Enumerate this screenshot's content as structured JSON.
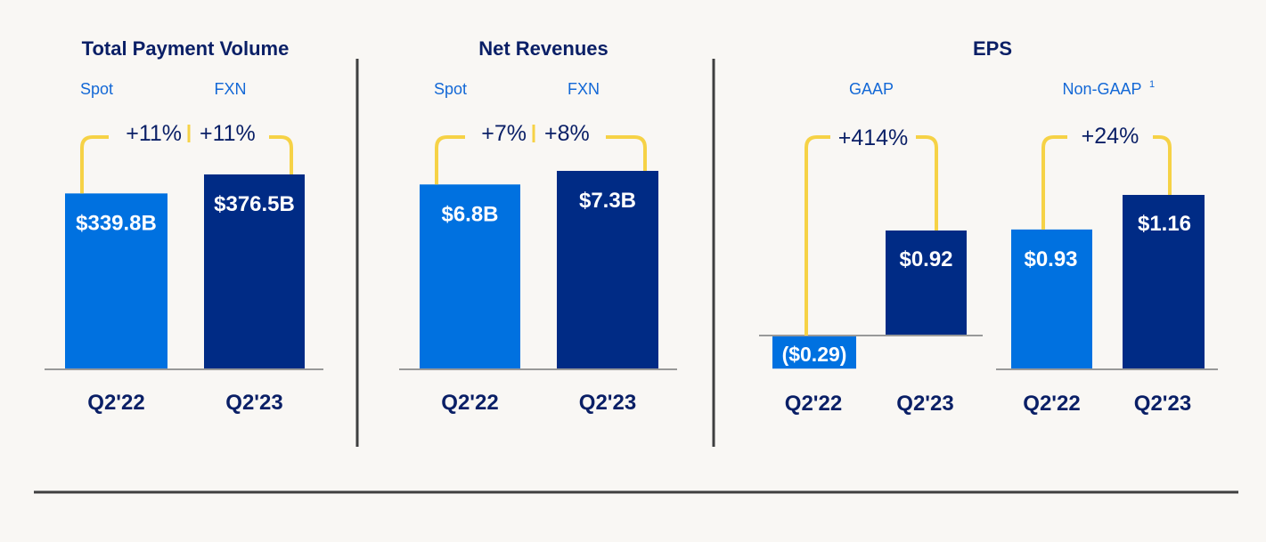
{
  "colors": {
    "background": "#f9f7f4",
    "title": "#0a1f66",
    "q2_22_bar": "#0071e0",
    "q2_23_bar": "#002b85",
    "bracket": "#f6d246",
    "subheader": "#1368d6",
    "baseline": "#999999",
    "divider": "#3f3f3f",
    "bar_label": "#ffffff",
    "category_label": "#0a1f66",
    "change_label": "#0a1f66"
  },
  "chart_data": [
    {
      "type": "bar",
      "title": "Total Payment Volume",
      "categories": [
        "Q2'22",
        "Q2'23"
      ],
      "values": [
        339.8,
        376.5
      ],
      "value_labels": [
        "$339.8B",
        "$376.5B"
      ],
      "change_headers": [
        "Spot",
        "FXN"
      ],
      "change_labels": [
        "+11%",
        "+11%"
      ],
      "ylim": [
        0,
        400
      ]
    },
    {
      "type": "bar",
      "title": "Net Revenues",
      "categories": [
        "Q2'22",
        "Q2'23"
      ],
      "values": [
        6.8,
        7.3
      ],
      "value_labels": [
        "$6.8B",
        "$7.3B"
      ],
      "change_headers": [
        "Spot",
        "FXN"
      ],
      "change_labels": [
        "+7%",
        "+8%"
      ],
      "ylim": [
        0,
        8
      ]
    },
    {
      "type": "bar",
      "title": "EPS",
      "subcharts": [
        {
          "header": "GAAP",
          "footnote": "",
          "categories": [
            "Q2'22",
            "Q2'23"
          ],
          "values": [
            -0.29,
            0.92
          ],
          "value_labels": [
            "($0.29)",
            "$0.92"
          ],
          "change_label": "+414%"
        },
        {
          "header": "Non-GAAP",
          "footnote": "1",
          "categories": [
            "Q2'22",
            "Q2'23"
          ],
          "values": [
            0.93,
            1.16
          ],
          "value_labels": [
            "$0.93",
            "$1.16"
          ],
          "change_label": "+24%"
        }
      ]
    }
  ]
}
